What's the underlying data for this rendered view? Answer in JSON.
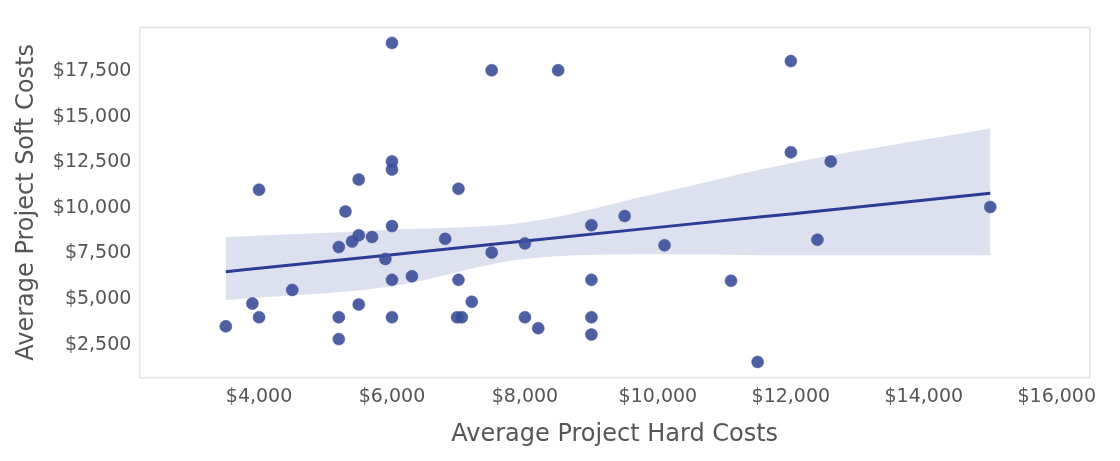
{
  "chart_data": {
    "type": "scatter",
    "xlabel": "Average Project Hard Costs",
    "ylabel": "Average Project Soft Costs",
    "xlim": [
      2200,
      16500
    ],
    "ylim": [
      700,
      19900
    ],
    "xticks": [
      {
        "value": 4000,
        "label": "$4,000"
      },
      {
        "value": 6000,
        "label": "$6,000"
      },
      {
        "value": 8000,
        "label": "$8,000"
      },
      {
        "value": 10000,
        "label": "$10,000"
      },
      {
        "value": 12000,
        "label": "$12,000"
      },
      {
        "value": 14000,
        "label": "$14,000"
      },
      {
        "value": 16000,
        "label": "$16,000"
      }
    ],
    "yticks": [
      {
        "value": 2500,
        "label": "$2,500"
      },
      {
        "value": 5000,
        "label": "$5,000"
      },
      {
        "value": 7500,
        "label": "$7,500"
      },
      {
        "value": 10000,
        "label": "$10,000"
      },
      {
        "value": 12500,
        "label": "$12,500"
      },
      {
        "value": 15000,
        "label": "$15,000"
      },
      {
        "value": 17500,
        "label": "$17,500"
      }
    ],
    "grid": false,
    "legend": false,
    "marker": "circle",
    "series": [
      {
        "color": "#3b4f99",
        "x": [
          3500,
          3900,
          4000,
          4000,
          4500,
          5200,
          5200,
          5200,
          5300,
          5400,
          5500,
          5500,
          5500,
          5700,
          5900,
          6000,
          6000,
          6000,
          6000,
          6000,
          6000,
          6300,
          6800,
          6980,
          7050,
          7000,
          7000,
          7200,
          7500,
          7500,
          8000,
          8000,
          8200,
          8500,
          9000,
          9000,
          9000,
          9000,
          9500,
          10100,
          11100,
          11500,
          12000,
          12000,
          12400,
          12600,
          15000
        ],
        "values": [
          3500,
          4750,
          4000,
          11000,
          5500,
          2800,
          4000,
          7850,
          9800,
          8150,
          8500,
          4700,
          11550,
          8400,
          7200,
          12100,
          12550,
          9000,
          6050,
          4000,
          19050,
          6250,
          8300,
          4000,
          4000,
          6050,
          11050,
          4850,
          7550,
          17550,
          8050,
          4000,
          3400,
          17550,
          9050,
          6050,
          4000,
          3050,
          9550,
          7950,
          6000,
          1550,
          18050,
          13050,
          8250,
          12550,
          10050
        ]
      },
      {
        "type": "line",
        "color": "#2a3d93",
        "marker": "none",
        "x": [
          3500,
          6000,
          8000,
          10000,
          12000,
          15000
        ],
        "values": [
          6500,
          7430,
          8180,
          8930,
          9670,
          10800
        ],
        "lower": [
          4950,
          5700,
          7200,
          7450,
          7400,
          7400
        ],
        "upper": [
          8400,
          8800,
          9200,
          10800,
          12450,
          14350
        ]
      }
    ]
  }
}
